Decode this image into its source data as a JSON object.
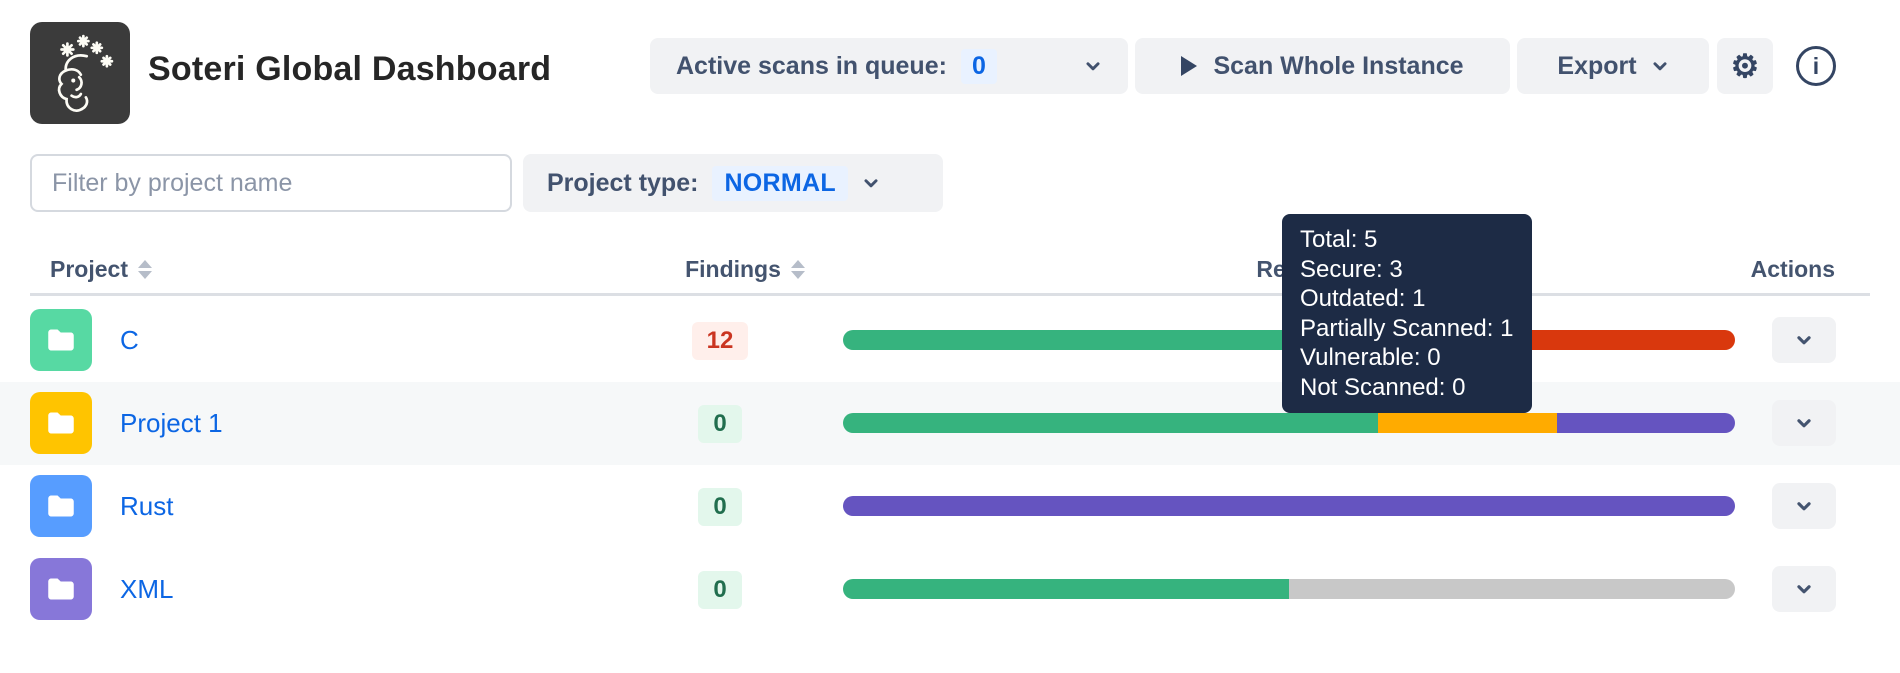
{
  "header": {
    "title": "Soteri Global Dashboard"
  },
  "toolbar": {
    "queue_label": "Active scans in queue:",
    "queue_count": "0",
    "scan_button": "Scan Whole Instance",
    "export_button": "Export",
    "gear_icon": "gear-icon",
    "info_icon": "info-icon",
    "info_glyph": "i"
  },
  "filters": {
    "search_placeholder": "Filter by project name",
    "type_label": "Project type:",
    "type_value": "NORMAL"
  },
  "table": {
    "columns": {
      "project": "Project",
      "findings": "Findings",
      "repositories": "Repositories",
      "actions": "Actions"
    },
    "rows": [
      {
        "name": "C",
        "avatar_color": "#57d9a3",
        "findings": "12",
        "findings_variant": "danger",
        "highlighted": false,
        "bar": [
          {
            "status": "secure",
            "pct": 50
          },
          {
            "status": "vulnerable",
            "pct": 50
          }
        ]
      },
      {
        "name": "Project 1",
        "avatar_color": "#ffc400",
        "findings": "0",
        "findings_variant": "success",
        "highlighted": true,
        "bar": [
          {
            "status": "secure",
            "pct": 60
          },
          {
            "status": "outdated",
            "pct": 20
          },
          {
            "status": "partially_scanned",
            "pct": 20
          }
        ]
      },
      {
        "name": "Rust",
        "avatar_color": "#579dff",
        "findings": "0",
        "findings_variant": "success",
        "highlighted": false,
        "bar": [
          {
            "status": "partially_scanned",
            "pct": 100
          }
        ]
      },
      {
        "name": "XML",
        "avatar_color": "#8777d9",
        "findings": "0",
        "findings_variant": "success",
        "highlighted": false,
        "bar": [
          {
            "status": "secure",
            "pct": 50
          },
          {
            "status": "not_scanned",
            "pct": 50
          }
        ]
      }
    ]
  },
  "tooltip": {
    "lines": [
      "Total: 5",
      "Secure: 3",
      "Outdated: 1",
      "Partially Scanned: 1",
      "Vulnerable: 0",
      "Not Scanned: 0"
    ]
  },
  "status_colors": {
    "secure": "#36b37e",
    "outdated": "#ffab00",
    "partially_scanned": "#6554c0",
    "vulnerable": "#d9380d",
    "not_scanned": "#c8c8c8"
  },
  "accent_colors": {
    "link_blue": "#0c66e4",
    "badge_blue_bg": "#e9f2ff",
    "danger_text": "#ca3521",
    "danger_bg": "#ffefeb",
    "success_text": "#216e4e",
    "success_bg": "#e3f7ec",
    "tooltip_bg": "#1d2b45"
  }
}
